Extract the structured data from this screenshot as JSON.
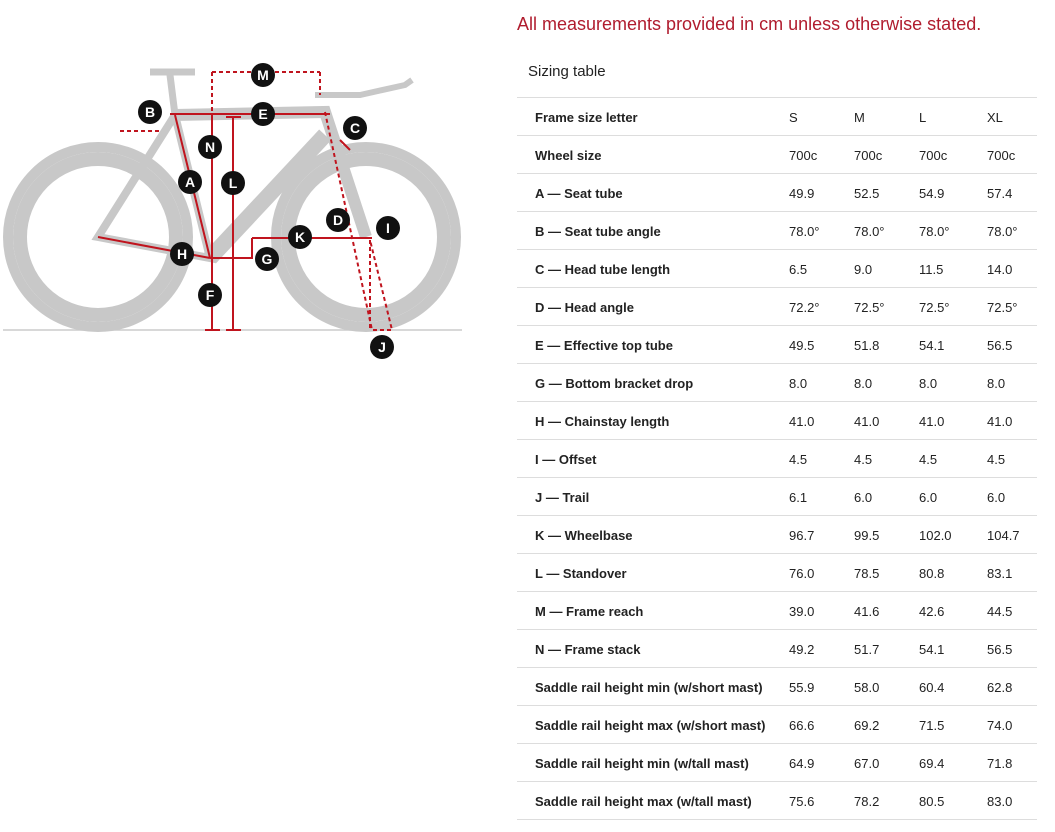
{
  "notice": "All measurements provided in cm unless otherwise stated.",
  "table": {
    "title": "Sizing table",
    "header": [
      "Frame size letter",
      "S",
      "M",
      "L",
      "XL"
    ],
    "rows": [
      [
        "Wheel size",
        "700c",
        "700c",
        "700c",
        "700c"
      ],
      [
        "A — Seat tube",
        "49.9",
        "52.5",
        "54.9",
        "57.4"
      ],
      [
        "B — Seat tube angle",
        "78.0°",
        "78.0°",
        "78.0°",
        "78.0°"
      ],
      [
        "C — Head tube length",
        "6.5",
        "9.0",
        "11.5",
        "14.0"
      ],
      [
        "D — Head angle",
        "72.2°",
        "72.5°",
        "72.5°",
        "72.5°"
      ],
      [
        "E — Effective top tube",
        "49.5",
        "51.8",
        "54.1",
        "56.5"
      ],
      [
        "G — Bottom bracket drop",
        "8.0",
        "8.0",
        "8.0",
        "8.0"
      ],
      [
        "H — Chainstay length",
        "41.0",
        "41.0",
        "41.0",
        "41.0"
      ],
      [
        "I — Offset",
        "4.5",
        "4.5",
        "4.5",
        "4.5"
      ],
      [
        "J — Trail",
        "6.1",
        "6.0",
        "6.0",
        "6.0"
      ],
      [
        "K — Wheelbase",
        "96.7",
        "99.5",
        "102.0",
        "104.7"
      ],
      [
        "L — Standover",
        "76.0",
        "78.5",
        "80.8",
        "83.1"
      ],
      [
        "M — Frame reach",
        "39.0",
        "41.6",
        "42.6",
        "44.5"
      ],
      [
        "N — Frame stack",
        "49.2",
        "51.7",
        "54.1",
        "56.5"
      ],
      [
        "Saddle rail height min (w/short mast)",
        "55.9",
        "58.0",
        "60.4",
        "62.8"
      ],
      [
        "Saddle rail height max (w/short mast)",
        "66.6",
        "69.2",
        "71.5",
        "74.0"
      ],
      [
        "Saddle rail height min (w/tall mast)",
        "64.9",
        "67.0",
        "69.4",
        "71.8"
      ],
      [
        "Saddle rail height max (w/tall mast)",
        "75.6",
        "78.2",
        "80.5",
        "83.0"
      ]
    ]
  },
  "diagram": {
    "labels": [
      "B",
      "M",
      "E",
      "C",
      "N",
      "A",
      "L",
      "D",
      "I",
      "K",
      "H",
      "G",
      "F",
      "J"
    ]
  }
}
